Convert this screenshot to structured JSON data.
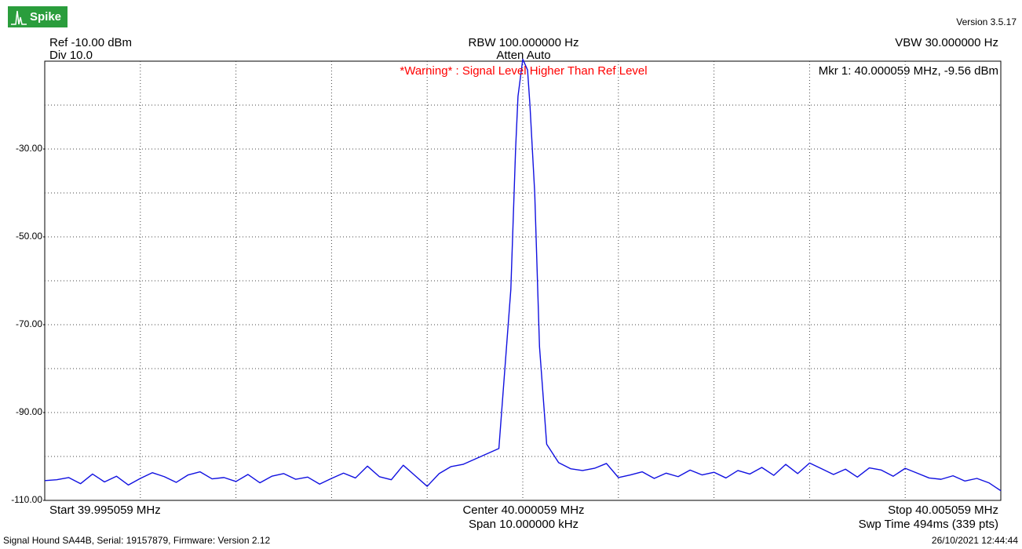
{
  "header": {
    "logo": "Spike",
    "version": "Version 3.5.17",
    "ref": "Ref -10.00 dBm",
    "div": "Div 10.0",
    "rbw": "RBW 100.000000 Hz",
    "atten": "Atten Auto",
    "vbw": "VBW 30.000000 Hz",
    "warning": "*Warning* : Signal Level Higher Than Ref Level",
    "marker": "Mkr 1: 40.000059 MHz, -9.56 dBm"
  },
  "axis_info": {
    "start": "Start 39.995059 MHz",
    "center": "Center 40.000059 MHz",
    "span": "Span 10.000000 kHz",
    "stop": "Stop 40.005059 MHz",
    "sweep": "Swp Time 494ms (339 pts)"
  },
  "footer": {
    "device": "Signal Hound SA44B, Serial: 19157879, Firmware: Version 2.12",
    "timestamp": "26/10/2021 12:44:44"
  },
  "chart_data": {
    "type": "line",
    "xlim": [
      39.995059,
      40.005059
    ],
    "ylim": [
      -110,
      -10
    ],
    "yticks": [
      {
        "value": -30,
        "label": "-30.00"
      },
      {
        "value": -50,
        "label": "-50.00"
      },
      {
        "value": -70,
        "label": "-70.00"
      },
      {
        "value": -90,
        "label": "-90.00"
      },
      {
        "value": -110,
        "label": "-110.00"
      }
    ],
    "ygrid": [
      -20,
      -30,
      -40,
      -50,
      -60,
      -70,
      -80,
      -90,
      -100
    ],
    "grid": true,
    "series": [
      {
        "color": "#1010e0",
        "x": [
          39.995059,
          39.995184,
          39.995309,
          39.995434,
          39.995559,
          39.995684,
          39.995809,
          39.995934,
          39.996059,
          39.996184,
          39.996309,
          39.996434,
          39.996559,
          39.996684,
          39.996809,
          39.996934,
          39.997059,
          39.997184,
          39.997309,
          39.997434,
          39.997559,
          39.997684,
          39.997809,
          39.997934,
          39.998059,
          39.998184,
          39.998309,
          39.998434,
          39.998559,
          39.998684,
          39.998809,
          39.998934,
          39.999059,
          39.999184,
          39.999309,
          39.999434,
          39.999559,
          39.999684,
          39.999809,
          39.999934,
          39.999984,
          40.000009,
          40.000059,
          40.000109,
          40.000134,
          40.000184,
          40.000234,
          40.000309,
          40.000434,
          40.000559,
          40.000684,
          40.000809,
          40.000934,
          40.001059,
          40.001184,
          40.001309,
          40.001434,
          40.001559,
          40.001684,
          40.001809,
          40.001934,
          40.002059,
          40.002184,
          40.002309,
          40.002434,
          40.002559,
          40.002684,
          40.002809,
          40.002934,
          40.003059,
          40.003184,
          40.003309,
          40.003434,
          40.003559,
          40.003684,
          40.003809,
          40.003934,
          40.004059,
          40.004184,
          40.004309,
          40.004434,
          40.004559,
          40.004684,
          40.004809,
          40.004934,
          40.005059
        ],
        "values": [
          -105.5,
          -105.3,
          -104.8,
          -106.2,
          -104.0,
          -105.8,
          -104.5,
          -106.5,
          -105.0,
          -103.7,
          -104.6,
          -105.9,
          -104.2,
          -103.5,
          -105.1,
          -104.8,
          -105.7,
          -104.1,
          -106.0,
          -104.5,
          -103.9,
          -105.2,
          -104.7,
          -106.3,
          -105.0,
          -103.8,
          -104.9,
          -102.2,
          -104.6,
          -105.3,
          -102.0,
          -104.4,
          -106.8,
          -103.9,
          -102.3,
          -101.8,
          -100.6,
          -99.4,
          -98.2,
          -62,
          -30,
          -18,
          -9.56,
          -12,
          -20,
          -40,
          -75,
          -97.2,
          -101.4,
          -102.8,
          -103.2,
          -102.7,
          -101.6,
          -104.8,
          -104.2,
          -103.5,
          -105.0,
          -103.8,
          -104.6,
          -103.1,
          -104.2,
          -103.6,
          -104.9,
          -103.2,
          -104.0,
          -102.5,
          -104.3,
          -101.8,
          -103.9,
          -101.5,
          -102.8,
          -104.1,
          -102.9,
          -104.7,
          -102.6,
          -103.1,
          -104.5,
          -102.7,
          -103.8,
          -104.9,
          -105.2,
          -104.4,
          -105.6,
          -105.0,
          -106.0,
          -107.8
        ]
      }
    ]
  }
}
